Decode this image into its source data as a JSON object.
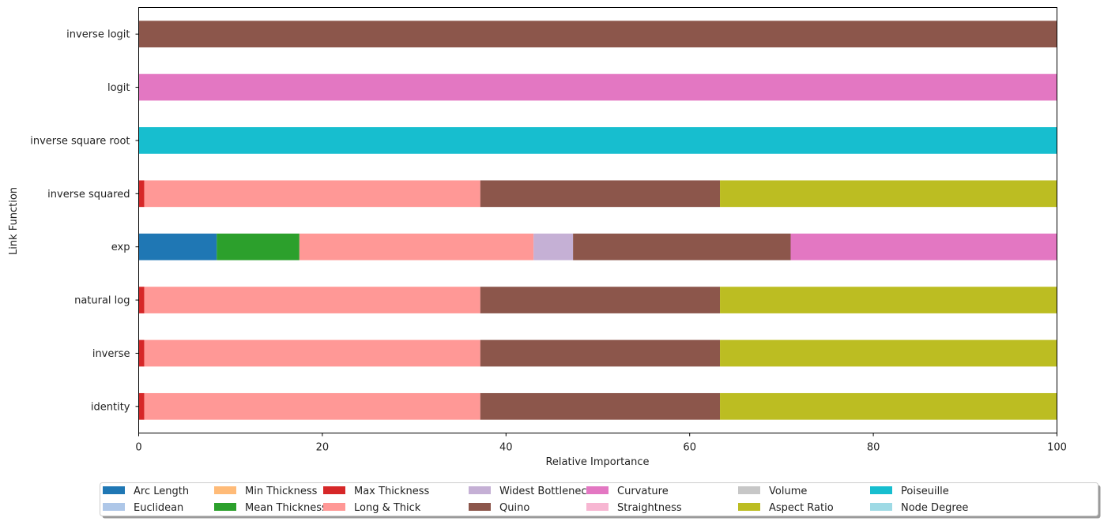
{
  "chart_data": {
    "type": "bar",
    "orientation": "horizontal",
    "stacked": true,
    "title": "",
    "xlabel": "Relative Importance",
    "ylabel": "Link Function",
    "xlim": [
      0,
      100
    ],
    "xticks": [
      0,
      20,
      40,
      60,
      80,
      100
    ],
    "grid": false,
    "legend_position": "bottom-center",
    "categories": [
      "identity",
      "inverse",
      "natural log",
      "exp",
      "inverse squared",
      "inverse square root",
      "logit",
      "inverse logit"
    ],
    "series": [
      {
        "name": "Arc Length",
        "color": "#1f77b4",
        "values": [
          0,
          0,
          0,
          8.5,
          0,
          0,
          0,
          0
        ]
      },
      {
        "name": "Euclidean",
        "color": "#aec7e8",
        "values": [
          0,
          0,
          0,
          0,
          0,
          0,
          0,
          0
        ]
      },
      {
        "name": "Min Thickness",
        "color": "#ffbb78",
        "values": [
          0,
          0,
          0,
          0,
          0,
          0,
          0,
          0
        ]
      },
      {
        "name": "Mean Thickness",
        "color": "#2ca02c",
        "values": [
          0,
          0,
          0,
          9.0,
          0,
          0,
          0,
          0
        ]
      },
      {
        "name": "Max Thickness",
        "color": "#d62728",
        "values": [
          0.6,
          0.6,
          0.6,
          0,
          0.6,
          0,
          0,
          0
        ]
      },
      {
        "name": "Long & Thick",
        "color": "#ff9896",
        "values": [
          36.6,
          36.6,
          36.6,
          25.5,
          36.6,
          0,
          0,
          0
        ]
      },
      {
        "name": "Widest Bottleneck",
        "color": "#c5b0d5",
        "values": [
          0,
          0,
          0,
          4.3,
          0,
          0,
          0,
          0
        ]
      },
      {
        "name": "Quino",
        "color": "#8c564b",
        "values": [
          26.1,
          26.1,
          26.1,
          23.7,
          26.1,
          0,
          0,
          100
        ]
      },
      {
        "name": "Curvature",
        "color": "#e377c2",
        "values": [
          0,
          0,
          0,
          29.0,
          0,
          0,
          100,
          0
        ]
      },
      {
        "name": "Straightness",
        "color": "#f7b6d2",
        "values": [
          0,
          0,
          0,
          0,
          0,
          0,
          0,
          0
        ]
      },
      {
        "name": "Volume",
        "color": "#c7c7c7",
        "values": [
          0,
          0,
          0,
          0,
          0,
          0,
          0,
          0
        ]
      },
      {
        "name": "Aspect Ratio",
        "color": "#bcbd22",
        "values": [
          36.7,
          36.7,
          36.7,
          0,
          36.7,
          0,
          0,
          0
        ]
      },
      {
        "name": "Poiseuille",
        "color": "#17becf",
        "values": [
          0,
          0,
          0,
          0,
          0,
          100,
          0,
          0
        ]
      },
      {
        "name": "Node Degree",
        "color": "#9edae5",
        "values": [
          0,
          0,
          0,
          0,
          0,
          0,
          0,
          0
        ]
      }
    ]
  }
}
